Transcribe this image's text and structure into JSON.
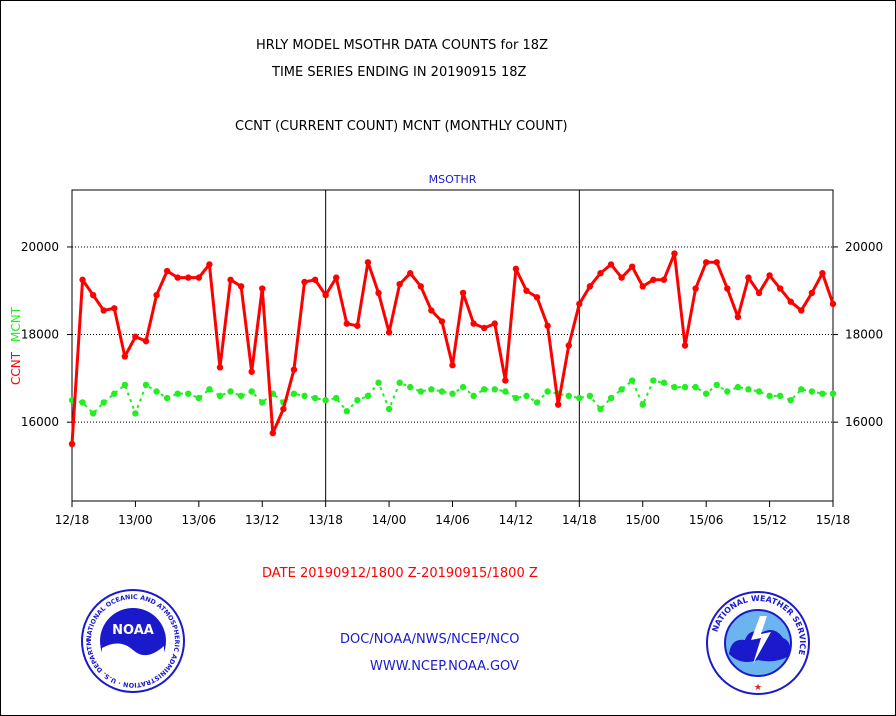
{
  "header": {
    "line1": "HRLY MODEL MSOTHR DATA COUNTS for 18Z",
    "line2": "TIME SERIES ENDING IN 20190915 18Z",
    "line3": "CCNT (CURRENT COUNT) MCNT (MONTHLY COUNT)"
  },
  "footer": {
    "date_range": "DATE 20190912/1800 Z-20190915/1800 Z",
    "org": "DOC/NOAA/NWS/NCEP/NCO",
    "url": "WWW.NCEP.NOAA.GOV"
  },
  "logos": {
    "noaa_text": "NOAA",
    "noaa_ring": "NATIONAL OCEANIC AND ATMOSPHERIC ADMINISTRATION · U.S. DEPARTMENT OF COMMERCE",
    "nws_ring": "NATIONAL WEATHER SERVICE"
  },
  "colors": {
    "ccnt": "#ff0000",
    "mcnt": "#22ee22",
    "label_blue": "#1a1acc"
  },
  "chart_data": {
    "type": "line",
    "title": "MSOTHR",
    "ylabel_left": [
      "CCNT",
      "MCNT"
    ],
    "ylim": [
      14200,
      21300
    ],
    "yticks": [
      16000,
      18000,
      20000
    ],
    "ytick_labels": [
      "16000",
      "18000",
      "20000"
    ],
    "xlim": [
      0,
      72
    ],
    "xticks": [
      0,
      6,
      12,
      18,
      24,
      30,
      36,
      42,
      48,
      54,
      60,
      66,
      72
    ],
    "xtick_labels": [
      "12/18",
      "13/00",
      "13/06",
      "13/12",
      "13/18",
      "14/00",
      "14/06",
      "14/12",
      "14/18",
      "15/00",
      "15/06",
      "15/12",
      "15/18"
    ],
    "vlines": [
      24,
      48
    ],
    "grid": "horizontal dotted",
    "series": [
      {
        "name": "CCNT",
        "color": "#ff0000",
        "values": [
          15500,
          19250,
          18900,
          18550,
          18600,
          17500,
          17950,
          17850,
          18900,
          19450,
          19300,
          19300,
          19300,
          19600,
          17250,
          19250,
          19100,
          17150,
          19050,
          15750,
          16300,
          17200,
          19200,
          19250,
          18900,
          19300,
          18250,
          18200,
          19650,
          18950,
          18050,
          19150,
          19400,
          19100,
          18550,
          18300,
          17300,
          18950,
          18250,
          18150,
          18250,
          16950,
          19500,
          19000,
          18850,
          18200,
          16400,
          17750,
          18700,
          19100,
          19400,
          19600,
          19300,
          19550,
          19100,
          19250,
          19250,
          19850,
          17750,
          19050,
          19650,
          19650,
          19050,
          18400,
          19300,
          18950,
          19350,
          19050,
          18750,
          18550,
          18950,
          19400,
          18700
        ]
      },
      {
        "name": "MCNT",
        "color": "#22ee22",
        "values": [
          16500,
          16450,
          16200,
          16450,
          16650,
          16850,
          16200,
          16850,
          16700,
          16550,
          16650,
          16650,
          16550,
          16750,
          16600,
          16700,
          16600,
          16700,
          16450,
          16650,
          16450,
          16650,
          16600,
          16550,
          16500,
          16550,
          16250,
          16500,
          16600,
          16900,
          16300,
          16900,
          16800,
          16700,
          16750,
          16700,
          16650,
          16800,
          16600,
          16750,
          16750,
          16700,
          16550,
          16600,
          16450,
          16700,
          16650,
          16600,
          16550,
          16600,
          16300,
          16550,
          16750,
          16950,
          16400,
          16950,
          16900,
          16800,
          16800,
          16800,
          16650,
          16850,
          16700,
          16800,
          16750,
          16700,
          16600,
          16600,
          16500,
          16750,
          16700,
          16650,
          16650
        ]
      }
    ]
  }
}
